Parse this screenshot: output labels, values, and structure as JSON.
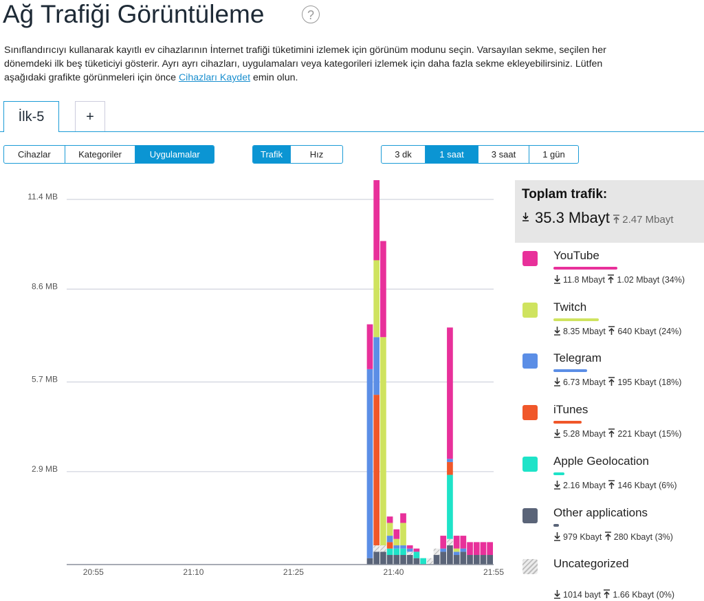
{
  "header": {
    "title": "Ağ Trafiği Görüntüleme",
    "help": "?",
    "description_before": "Sınıflandırıcıyı kullanarak kayıtlı ev cihazlarının İnternet trafiği tüketimini izlemek için görünüm modunu seçin. Varsayılan sekme, seçilen her dönemdeki ilk beş tüketiciyi gösterir. Ayrı ayrı cihazları, uygulamaları veya kategorileri izlemek için daha fazla sekme ekleyebilirsiniz. Lütfen aşağıdaki grafikte görünmeleri için önce ",
    "link": "Cihazları Kaydet",
    "description_after": " emin olun."
  },
  "tabs": [
    "İlk-5",
    "+"
  ],
  "active_tab": 0,
  "controls": [
    {
      "options": [
        "Cihazlar",
        "Kategoriler",
        "Uygulamalar"
      ],
      "active": 2
    },
    {
      "options": [
        "Trafik",
        "Hız"
      ],
      "active": 0
    },
    {
      "options": [
        "3 dk",
        "1 saat",
        "3 saat",
        "1 gün"
      ],
      "active": 1
    }
  ],
  "summary": {
    "title": "Toplam trafik:",
    "download": "35.3 Mbayt",
    "upload": "2.47 Mbayt"
  },
  "chart_data": {
    "type": "stacked-bar",
    "grid": true,
    "x": [
      "21:36",
      "21:37",
      "21:38",
      "21:39",
      "21:40",
      "21:41",
      "21:42",
      "21:43",
      "21:44",
      "21:45",
      "21:46",
      "21:47",
      "21:48",
      "21:49",
      "21:50",
      "21:51",
      "21:52",
      "21:53",
      "21:54"
    ],
    "xlim": [
      "20:51",
      "21:55"
    ],
    "xticks": [
      "20:55",
      "21:10",
      "21:25",
      "21:40",
      "21:55"
    ],
    "ylim": [
      0,
      12
    ],
    "yticks": [
      {
        "value": 2.9,
        "label": "2.9 MB"
      },
      {
        "value": 5.7,
        "label": "5.7 MB"
      },
      {
        "value": 8.6,
        "label": "8.6 MB"
      },
      {
        "value": 11.4,
        "label": "11.4 MB"
      }
    ],
    "series": [
      {
        "name": "YouTube",
        "color": "#e8309a",
        "download": "11.8 Mbayt",
        "upload": "1.02 Mbayt",
        "share": 34,
        "share_label": "(34%)",
        "values": [
          1.4,
          2.5,
          3.0,
          0.2,
          0.3,
          0.3,
          0.1,
          0.1,
          0,
          0,
          0,
          0.4,
          4.1,
          0.4,
          0.4,
          0.4,
          0.4,
          0.4,
          0.4
        ]
      },
      {
        "name": "Twitch",
        "color": "#cfe35f",
        "download": "8.35 Mbayt",
        "upload": "640 Kbayt",
        "share": 24,
        "share_label": "(24%)",
        "values": [
          0,
          2.4,
          6.5,
          0.4,
          0.2,
          0.7,
          0,
          0,
          0,
          0,
          0,
          0,
          0,
          0.1,
          0,
          0,
          0,
          0,
          0
        ]
      },
      {
        "name": "Telegram",
        "color": "#5b8ee6",
        "download": "6.73 Mbayt",
        "upload": "195 Kbayt",
        "share": 18,
        "share_label": "(18%)",
        "values": [
          5.9,
          1.8,
          0,
          0.2,
          0.1,
          0.1,
          0.1,
          0,
          0,
          0,
          0,
          0.1,
          0.1,
          0.1,
          0.1,
          0,
          0,
          0,
          0
        ]
      },
      {
        "name": "iTunes",
        "color": "#f0572a",
        "download": "5.28 Mbayt",
        "upload": "221 Kbayt",
        "share": 15,
        "share_label": "(15%)",
        "values": [
          0,
          4.7,
          0,
          0.2,
          0,
          0,
          0,
          0,
          0,
          0,
          0,
          0,
          0.4,
          0,
          0,
          0,
          0,
          0,
          0
        ]
      },
      {
        "name": "Apple Geolocation",
        "color": "#1ee3c8",
        "download": "2.16 Mbayt",
        "upload": "146 Kbayt",
        "share": 6,
        "share_label": "(6%)",
        "values": [
          0,
          0,
          0,
          0.2,
          0.2,
          0.2,
          0,
          0.2,
          0.2,
          0,
          0,
          0,
          2.0,
          0,
          0,
          0,
          0,
          0,
          0
        ]
      },
      {
        "name": "Other applications",
        "color": "#5a6478",
        "download": "979 Kbayt",
        "upload": "280 Kbayt",
        "share": 3,
        "share_label": "(3%)",
        "values": [
          0.2,
          0.4,
          0.4,
          0.3,
          0.3,
          0.3,
          0.3,
          0.2,
          0,
          0,
          0.3,
          0.4,
          0.6,
          0.3,
          0.4,
          0.3,
          0.3,
          0.3,
          0.3
        ]
      },
      {
        "name": "Uncategorized",
        "color": "#c8c8c8",
        "pattern": "hatch",
        "download": "1014 bayt",
        "upload": "1.66 Kbayt",
        "share": 0,
        "share_label": "(0%)",
        "values": [
          0,
          0.2,
          0.2,
          0,
          0,
          0,
          0.1,
          0,
          0,
          0.2,
          0.2,
          0,
          0.2,
          0,
          0,
          0,
          0,
          0,
          0
        ]
      }
    ]
  }
}
